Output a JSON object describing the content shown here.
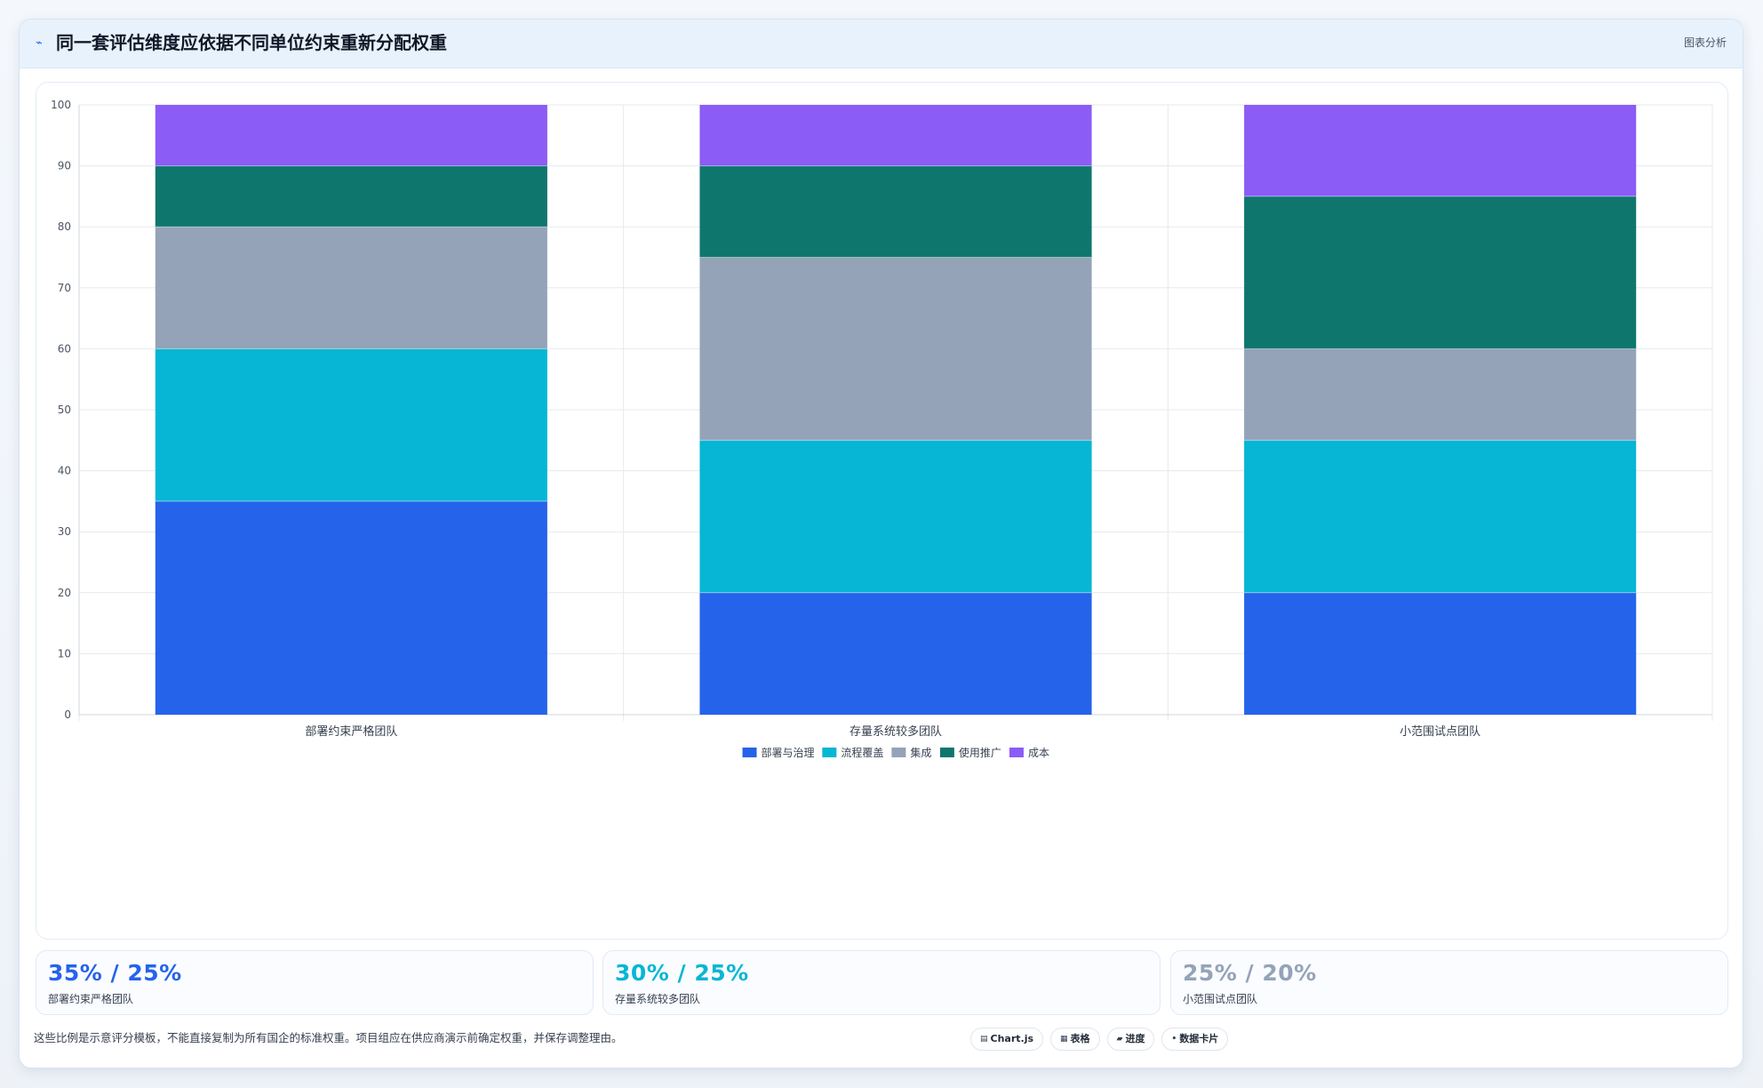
{
  "header": {
    "icon": "chart-line-icon",
    "title": "同一套评估维度应依据不同单位约束重新分配权重",
    "action_label": "图表分析"
  },
  "chart_data": {
    "type": "bar",
    "stacked": true,
    "categories": [
      "部署约束严格团队",
      "存量系统较多团队",
      "小范围试点团队"
    ],
    "series": [
      {
        "name": "部署与治理",
        "color": "#2563eb",
        "values": [
          35,
          20,
          20
        ]
      },
      {
        "name": "流程覆盖",
        "color": "#06b6d4",
        "values": [
          25,
          25,
          25
        ]
      },
      {
        "name": "集成",
        "color": "#94a3b8",
        "values": [
          20,
          30,
          15
        ]
      },
      {
        "name": "使用推广",
        "color": "#0f766e",
        "values": [
          10,
          15,
          25
        ]
      },
      {
        "name": "成本",
        "color": "#8b5cf6",
        "values": [
          10,
          10,
          15
        ]
      }
    ],
    "ylim": [
      0,
      100
    ],
    "yticks": [
      0,
      10,
      20,
      30,
      40,
      50,
      60,
      70,
      80,
      90,
      100
    ],
    "grid": true,
    "legend": "bottom"
  },
  "stats": [
    {
      "value": "35% / 25%",
      "label": "部署约束严格团队",
      "color": "#2563eb"
    },
    {
      "value": "30% / 25%",
      "label": "存量系统较多团队",
      "color": "#06b6d4"
    },
    {
      "value": "25% / 20%",
      "label": "小范围试点团队",
      "color": "#94a3b8"
    }
  ],
  "footer": {
    "note": "这些比例是示意评分模板，不能直接复制为所有国企的标准权重。项目组应在供应商演示前确定权重，并保存调整理由。",
    "tags": [
      {
        "icon": "chart-icon",
        "glyph": "▤",
        "label": "Chart.js"
      },
      {
        "icon": "table-icon",
        "glyph": "▦",
        "label": "表格"
      },
      {
        "icon": "progress-icon",
        "glyph": "▰",
        "label": "进度"
      },
      {
        "icon": "card-icon",
        "glyph": "•",
        "label": "数据卡片"
      }
    ]
  }
}
